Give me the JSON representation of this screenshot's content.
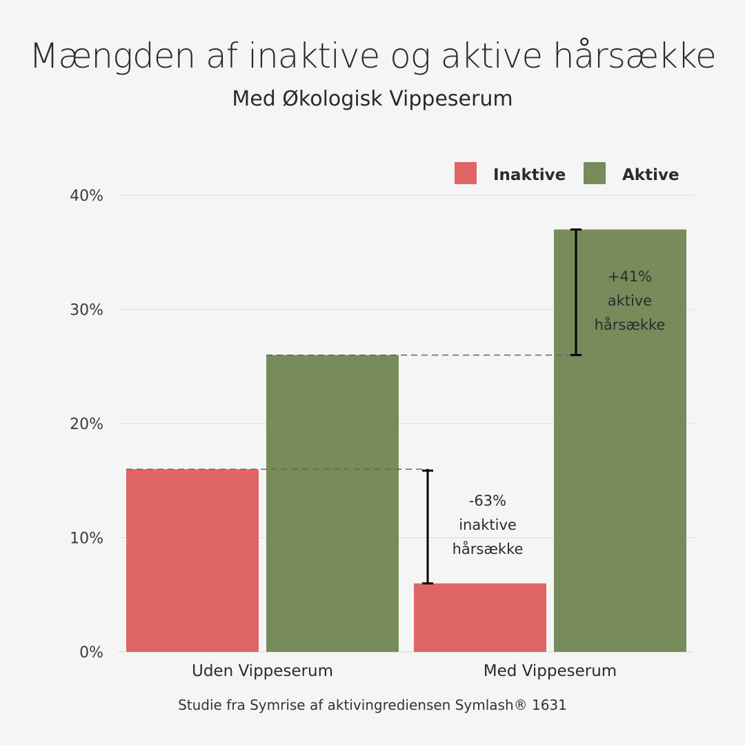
{
  "chart_data": {
    "type": "bar",
    "title": "Mængden af inaktive og aktive hårsække",
    "subtitle": "Med Økologisk Vippeserum",
    "footnote": "Studie fra Symrise af aktivingrediensen Symlash® 1631",
    "categories": [
      "Uden Vippeserum",
      "Med Vippeserum"
    ],
    "series": [
      {
        "name": "Inaktive",
        "color": "#e06566",
        "values": [
          16,
          6
        ]
      },
      {
        "name": "Aktive",
        "color": "#778b5b",
        "values": [
          26,
          37
        ]
      }
    ],
    "ylim": [
      0,
      40
    ],
    "yticks": [
      0,
      10,
      20,
      30,
      40
    ],
    "ytick_labels": [
      "0%",
      "10%",
      "20%",
      "30%",
      "40%"
    ],
    "grid": true,
    "legend_position": "top-right",
    "annotations": [
      {
        "series": "Inaktive",
        "from": 16,
        "to": 6,
        "lines": [
          "-63%",
          "inaktive",
          "hårsække"
        ]
      },
      {
        "series": "Aktive",
        "from": 26,
        "to": 37,
        "lines": [
          "+41%",
          "aktive",
          "hårsække"
        ]
      }
    ]
  }
}
